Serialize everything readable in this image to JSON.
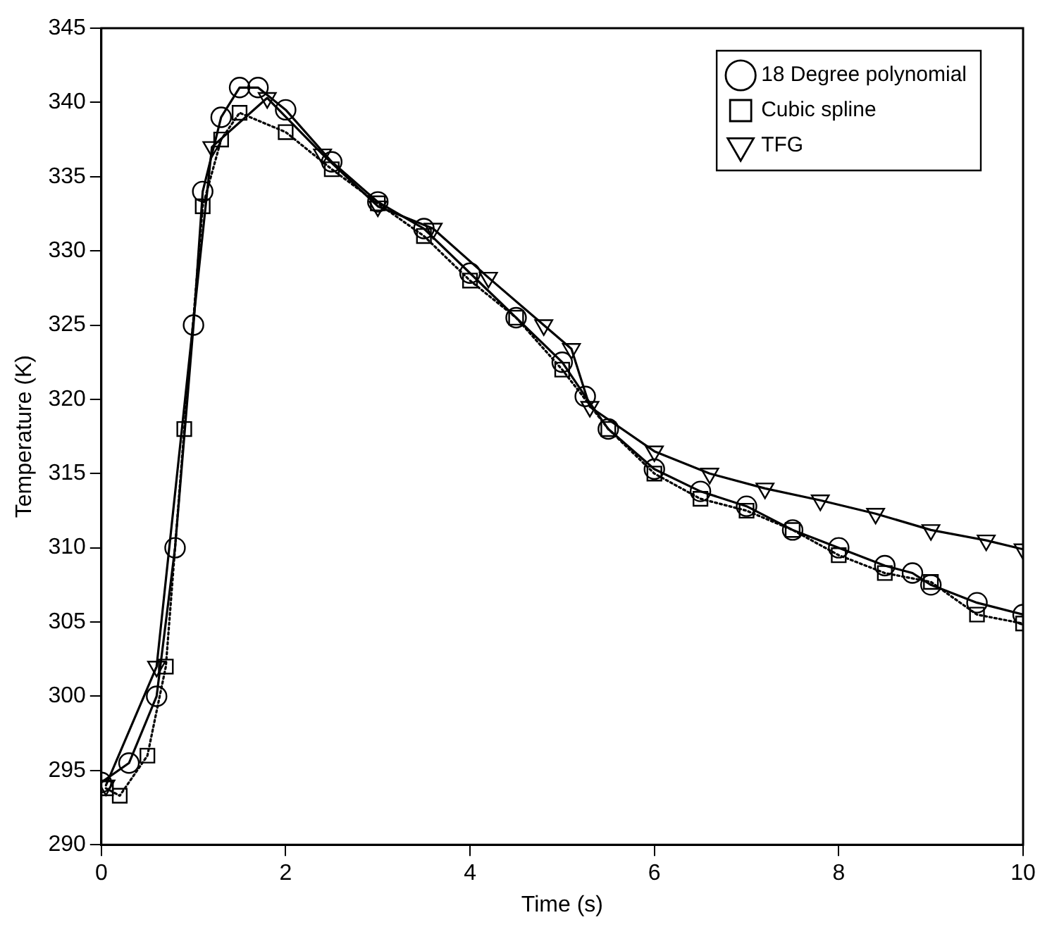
{
  "chart_data": {
    "type": "line",
    "xlabel": "Time (s)",
    "ylabel": "Temperature (K)",
    "xlim": [
      0,
      10
    ],
    "xticks": [
      0,
      2,
      4,
      6,
      8,
      10
    ],
    "ylim": [
      290,
      345
    ],
    "yticks": [
      290,
      295,
      300,
      305,
      310,
      315,
      320,
      325,
      330,
      335,
      340,
      345
    ],
    "grid": false,
    "legend": "top right",
    "series": [
      {
        "name": "18 Degree polynomial",
        "color": "#000000",
        "marker": "circle",
        "line_style": "solid",
        "x": [
          0,
          0.3,
          0.6,
          0.8,
          1.0,
          1.1,
          1.3,
          1.5,
          1.7,
          2.0,
          2.5,
          3.0,
          3.5,
          4.0,
          4.5,
          5.0,
          5.25,
          5.5,
          6.0,
          6.5,
          7.0,
          7.5,
          8.0,
          8.5,
          8.8,
          9.0,
          9.5,
          10
        ],
        "values": [
          294.2,
          295.5,
          300,
          310,
          325,
          334,
          339,
          341,
          341,
          339.5,
          336,
          333.3,
          331.5,
          328.5,
          325.5,
          322.5,
          320.2,
          318,
          315.3,
          313.8,
          312.8,
          311.2,
          310,
          308.8,
          308.3,
          307.5,
          306.3,
          305.5
        ]
      },
      {
        "name": "Cubic spline",
        "color": "#000000",
        "marker": "square",
        "line_style": "dotted",
        "x": [
          0.05,
          0.2,
          0.5,
          0.7,
          0.9,
          1.1,
          1.3,
          1.5,
          2.0,
          2.5,
          3.0,
          3.5,
          4.0,
          4.5,
          5.0,
          5.5,
          6.0,
          6.5,
          7.0,
          7.5,
          8.0,
          8.5,
          9.0,
          9.5,
          10
        ],
        "values": [
          293.8,
          293.3,
          296,
          302,
          318,
          333,
          337.5,
          339.3,
          338,
          335.5,
          333.2,
          331,
          328,
          325.5,
          322,
          318,
          315,
          313.3,
          312.5,
          311.2,
          309.5,
          308.3,
          307.7,
          305.5,
          304.9
        ]
      },
      {
        "name": "TFG",
        "color": "#000000",
        "marker": "triangle",
        "line_style": "solid",
        "x": [
          0.05,
          0.6,
          1.2,
          1.8,
          2.4,
          3.0,
          3.6,
          4.2,
          4.8,
          5.1,
          5.3,
          6.0,
          6.6,
          7.2,
          7.8,
          8.4,
          9.0,
          9.6,
          10
        ],
        "values": [
          294,
          302,
          337,
          340.3,
          336.5,
          333,
          331.5,
          328.2,
          325,
          323.4,
          319.5,
          316.5,
          315,
          314,
          313.2,
          312.3,
          311.2,
          310.5,
          309.9
        ]
      }
    ]
  }
}
